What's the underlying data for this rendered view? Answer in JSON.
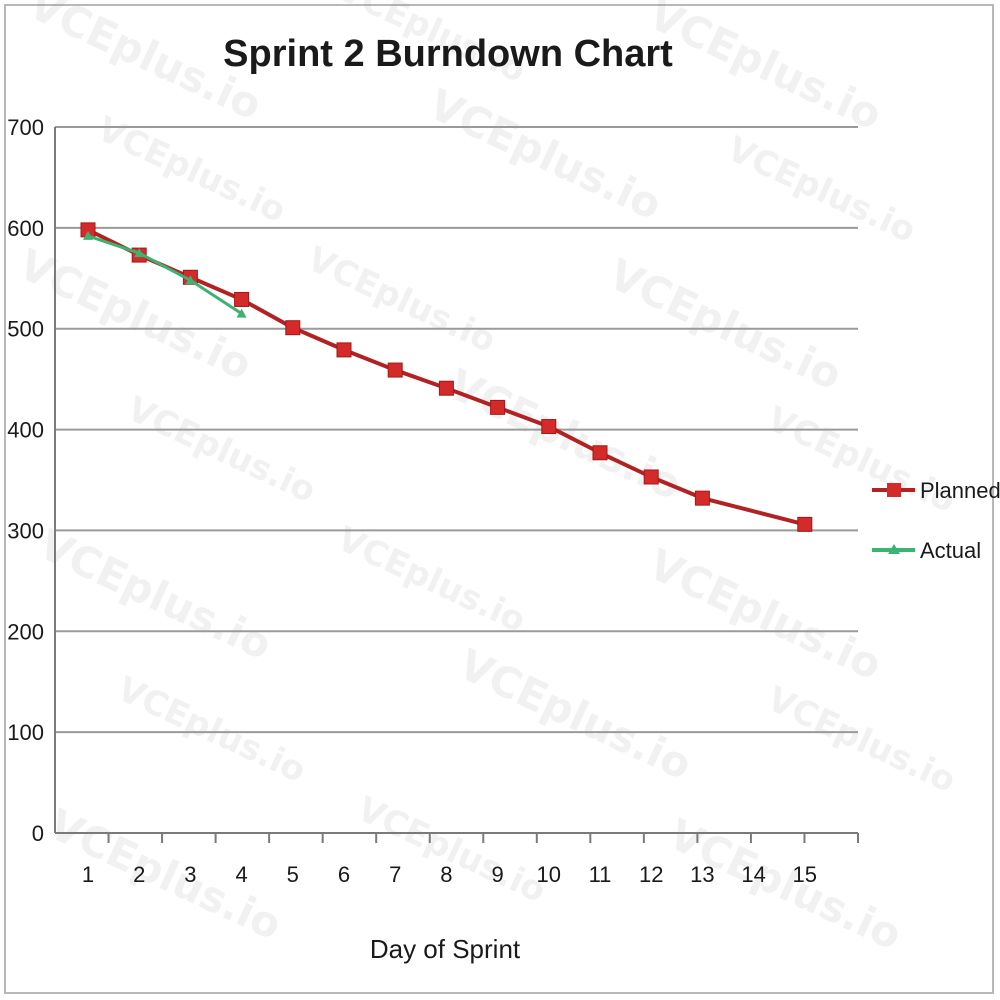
{
  "chart_data": {
    "type": "line",
    "title": "Sprint 2 Burndown Chart",
    "xlabel": "Day of Sprint",
    "ylabel": "",
    "x": [
      1,
      2,
      3,
      4,
      5,
      6,
      7,
      8,
      9,
      10,
      11,
      12,
      13,
      14,
      15
    ],
    "ylim": [
      0,
      700
    ],
    "yticks": [
      0,
      100,
      200,
      300,
      400,
      500,
      600,
      700
    ],
    "grid": true,
    "legend": "right",
    "series": [
      {
        "name": "Planned",
        "color": "#b22222",
        "marker": "square",
        "values": [
          598,
          573,
          551,
          529,
          501,
          479,
          459,
          441,
          422,
          403,
          377,
          353,
          332,
          null,
          306
        ]
      },
      {
        "name": "Actual",
        "color": "#3cb371",
        "marker": "triangle",
        "values": [
          592,
          575,
          548,
          515,
          null,
          null,
          null,
          null,
          null,
          null,
          null,
          null,
          null,
          null,
          null
        ]
      }
    ],
    "watermark": "VCEplus.io"
  }
}
